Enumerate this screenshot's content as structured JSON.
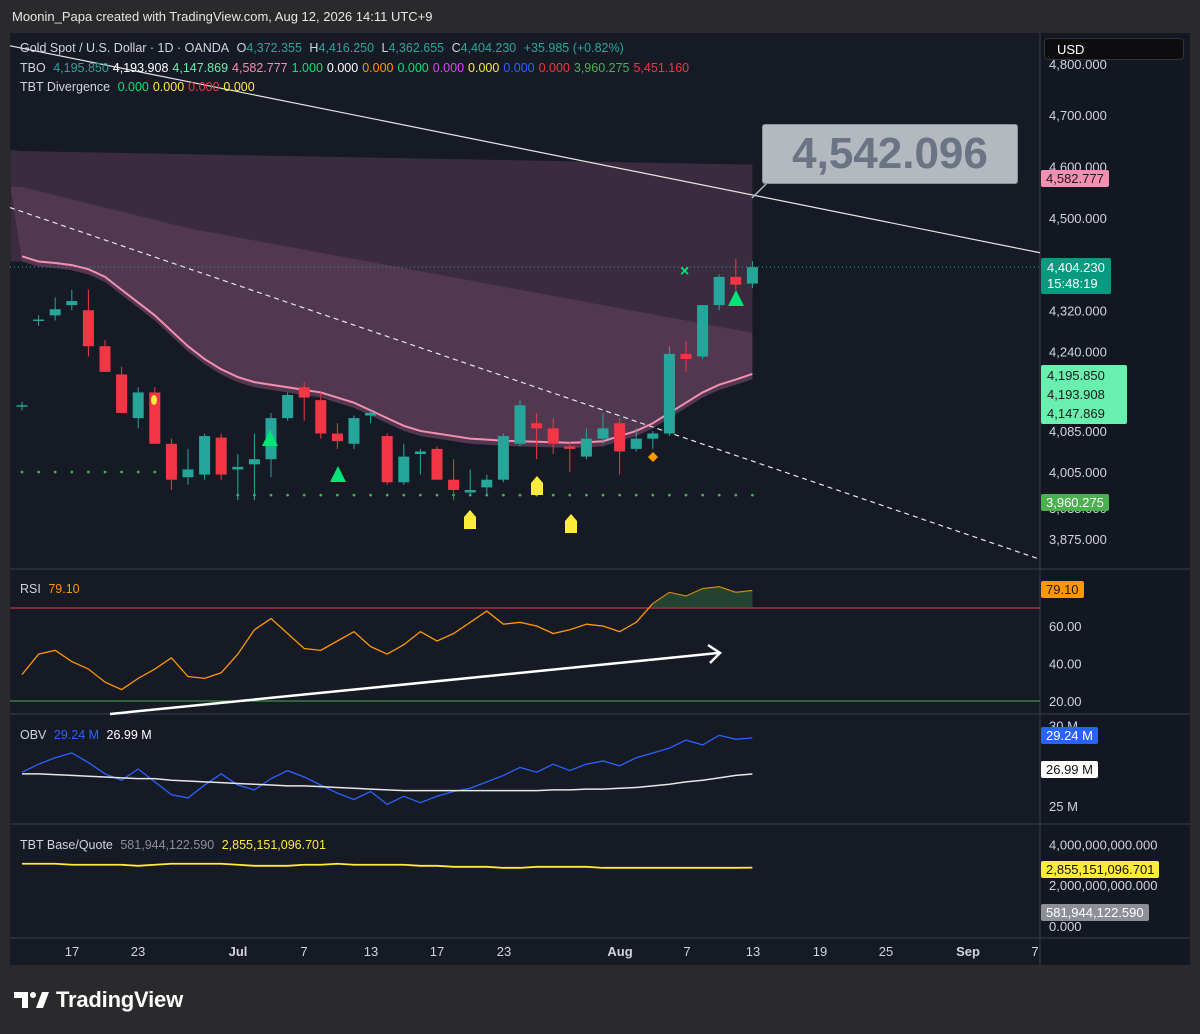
{
  "header": {
    "credit": "Moonin_Papa created with TradingView.com, Aug 12, 2026 14:11 UTC+9"
  },
  "footer": {
    "logo_text": "TradingView"
  },
  "currency_button": "USD",
  "colors": {
    "up": "#26a69a",
    "down": "#f23645",
    "rsi": "#ff9800",
    "obv": "#2962ff",
    "tbt_ma": "#ffeb3b",
    "sma": "#f48fb1",
    "volume": "#8c8f96"
  },
  "legend": {
    "main": {
      "symbol": "Gold Spot / U.S. Dollar · 1D · OANDA",
      "o_label": "O",
      "o": "4,372.355",
      "h_label": "H",
      "h": "4,416.250",
      "l_label": "L",
      "l": "4,362.655",
      "c_label": "C",
      "c": "4,404.230",
      "change": "+35.985 (+0.82%)"
    },
    "tbo": {
      "name": "TBO",
      "values": [
        "4,195.850",
        "4,193.908",
        "4,147.869",
        "4,582.777",
        "1.000",
        "0.000",
        "0.000",
        "0.000",
        "0.000",
        "0.000",
        "0.000",
        "0.000",
        "3,960.275",
        "5,451.160"
      ],
      "colors": [
        "#26a69a",
        "#ffffff",
        "#69f0ae",
        "#f48fb1",
        "#00e676",
        "#ffffff",
        "#ff9800",
        "#00e676",
        "#e040fb",
        "#ffeb3b",
        "#2962ff",
        "#f23645",
        "#4caf50",
        "#f23645"
      ]
    },
    "tbt_div": {
      "name": "TBT Divergence",
      "values": [
        "0.000",
        "0.000",
        "0.000",
        "0.000"
      ],
      "colors": [
        "#00e676",
        "#ffeb3b",
        "#f23645",
        "#ffeb3b"
      ]
    },
    "rsi": {
      "name": "RSI",
      "value": "79.10"
    },
    "obv": {
      "name": "OBV",
      "v1": "29.24 M",
      "v2": "26.99 M"
    },
    "tbt_bq": {
      "name": "TBT Base/Quote",
      "v1": "581,944,122.590",
      "v2": "2,855,151,096.701"
    }
  },
  "callout": "4,542.096",
  "price_axis": {
    "main_ticks": [
      "4,800.000",
      "4,700.000",
      "4,600.000",
      "4,500.000",
      "4,320.000",
      "4,240.000",
      "4,085.000",
      "4,005.000",
      "3,935.000",
      "3,875.000"
    ],
    "rsi_ticks": [
      "60.00",
      "40.00",
      "20.00"
    ],
    "obv_ticks": [
      "30 M",
      "27.5 M",
      "25 M"
    ],
    "bq_ticks": [
      "4,000,000,000.000",
      "2,000,000,000.000",
      "0.000"
    ]
  },
  "price_tags": {
    "tbo_upper": "4,582.777",
    "last_price": "4,404.230",
    "countdown": "15:48:19",
    "tbo_1": "4,195.850",
    "tbo_2": "4,193.908",
    "tbo_3": "4,147.869",
    "tbo_low": "3,960.275",
    "rsi": "79.10",
    "obv_1": "29.24 M",
    "obv_2": "26.99 M",
    "bq_1": "2,855,151,096.701",
    "bq_2": "581,944,122.590"
  },
  "time_axis": [
    "17",
    "23",
    "Jul",
    "7",
    "13",
    "17",
    "23",
    "Aug",
    "7",
    "13",
    "19",
    "25",
    "Sep",
    "7"
  ],
  "chart_data": {
    "type": "candlestick",
    "title": "Gold Spot / U.S. Dollar · 1D · OANDA",
    "ohlc": [
      [
        4135,
        4142,
        4125,
        4135
      ],
      [
        4300,
        4310,
        4290,
        4302
      ],
      [
        4310,
        4345,
        4300,
        4322
      ],
      [
        4330,
        4360,
        4320,
        4338
      ],
      [
        4320,
        4360,
        4230,
        4250
      ],
      [
        4250,
        4262,
        4200,
        4200
      ],
      [
        4195,
        4210,
        4120,
        4120
      ],
      [
        4110,
        4170,
        4090,
        4160
      ],
      [
        4160,
        4170,
        4060,
        4060
      ],
      [
        4060,
        4070,
        3970,
        3990
      ],
      [
        3995,
        4050,
        3980,
        4010
      ],
      [
        4000,
        4080,
        3990,
        4075
      ],
      [
        4072,
        4080,
        3990,
        4000
      ],
      [
        4010,
        4040,
        3950,
        4015
      ],
      [
        4020,
        4080,
        3950,
        4030
      ],
      [
        4030,
        4120,
        3995,
        4110
      ],
      [
        4110,
        4160,
        4105,
        4155
      ],
      [
        4170,
        4180,
        4105,
        4150
      ],
      [
        4145,
        4160,
        4070,
        4080
      ],
      [
        4080,
        4100,
        4050,
        4065
      ],
      [
        4060,
        4115,
        4050,
        4110
      ],
      [
        4115,
        4125,
        4100,
        4120
      ],
      [
        4075,
        4080,
        3980,
        3985
      ],
      [
        3985,
        4060,
        3980,
        4035
      ],
      [
        4040,
        4050,
        4000,
        4045
      ],
      [
        4050,
        4055,
        3990,
        3990
      ],
      [
        3990,
        4030,
        3950,
        3970
      ],
      [
        3965,
        4010,
        3960,
        3970
      ],
      [
        3975,
        4000,
        3960,
        3990
      ],
      [
        3990,
        4080,
        3985,
        4075
      ],
      [
        4060,
        4145,
        4055,
        4135
      ],
      [
        4100,
        4120,
        4030,
        4090
      ],
      [
        4090,
        4110,
        4040,
        4060
      ],
      [
        4055,
        4065,
        4005,
        4050
      ],
      [
        4035,
        4090,
        4030,
        4070
      ],
      [
        4070,
        4120,
        4060,
        4090
      ],
      [
        4100,
        4110,
        4000,
        4045
      ],
      [
        4050,
        4090,
        4045,
        4070
      ],
      [
        4070,
        4085,
        4050,
        4080
      ],
      [
        4080,
        4250,
        4075,
        4235
      ],
      [
        4235,
        4260,
        4200,
        4225
      ],
      [
        4230,
        4330,
        4225,
        4330
      ],
      [
        4330,
        4390,
        4320,
        4385
      ],
      [
        4385,
        4420,
        4360,
        4370
      ],
      [
        4372,
        4416,
        4363,
        4404
      ]
    ],
    "rsi": [
      34,
      45,
      47,
      41,
      37,
      30,
      26,
      32,
      37,
      43,
      33,
      32,
      35,
      45,
      58,
      64,
      56,
      48,
      47,
      52,
      57,
      49,
      45,
      50,
      57,
      52,
      56,
      62,
      68,
      61,
      62,
      60,
      56,
      58,
      61,
      60,
      57,
      62,
      72,
      78,
      76,
      80,
      81,
      78,
      79
    ],
    "obv_m": [
      27.1,
      27.6,
      28.0,
      28.3,
      27.7,
      27.0,
      26.6,
      27.3,
      26.5,
      25.7,
      25.5,
      26.3,
      27.0,
      26.3,
      26.0,
      26.7,
      27.2,
      26.8,
      26.3,
      25.8,
      25.4,
      25.9,
      25.1,
      25.6,
      25.2,
      25.6,
      25.9,
      26.1,
      26.5,
      26.9,
      27.4,
      27.1,
      27.6,
      27.2,
      27.6,
      27.8,
      27.5,
      28.0,
      28.3,
      28.6,
      29.1,
      28.8,
      29.4,
      29.15,
      29.24
    ],
    "obv_ma_m": [
      27.0,
      27.0,
      26.95,
      26.9,
      26.85,
      26.8,
      26.75,
      26.7,
      26.7,
      26.6,
      26.55,
      26.5,
      26.45,
      26.4,
      26.35,
      26.3,
      26.25,
      26.25,
      26.2,
      26.15,
      26.1,
      26.05,
      26.0,
      25.95,
      25.95,
      25.95,
      25.95,
      25.95,
      25.95,
      25.95,
      25.95,
      25.95,
      26.0,
      26.0,
      26.05,
      26.05,
      26.1,
      26.15,
      26.25,
      26.35,
      26.5,
      26.6,
      26.75,
      26.9,
      26.99
    ],
    "bq_b": [
      4.0,
      2.8,
      4.1,
      4.1,
      2.6,
      4.1,
      2.4,
      3.6,
      4.0,
      4.3,
      3.4,
      3.2,
      3.2,
      3.2,
      1.5,
      2.5,
      3.1,
      2.3,
      4.2,
      2.8,
      2.3,
      3.7,
      2.4,
      3.9,
      3.0,
      3.6,
      3.9,
      4.4,
      2.8,
      2.6,
      2.7,
      2.6,
      2.3,
      3.1,
      3.4,
      3.9,
      4.6,
      3.1,
      2.6,
      2.4,
      3.7,
      3.6,
      4.4,
      3.2,
      0.58
    ],
    "bq_ma_b": [
      3.05,
      3.05,
      3.05,
      3.0,
      3.0,
      3.0,
      3.0,
      2.95,
      3.0,
      3.05,
      3.05,
      3.05,
      3.05,
      3.0,
      2.95,
      2.95,
      2.95,
      3.0,
      3.0,
      3.05,
      3.0,
      3.0,
      3.0,
      3.0,
      2.95,
      2.95,
      2.9,
      2.9,
      2.9,
      2.85,
      2.85,
      2.9,
      2.9,
      2.9,
      2.9,
      2.85,
      2.85,
      2.85,
      2.85,
      2.85,
      2.85,
      2.85,
      2.85,
      2.85,
      2.86
    ],
    "sma": [
      4425,
      4415,
      4412,
      4408,
      4400,
      4385,
      4360,
      4335,
      4310,
      4280,
      4250,
      4225,
      4205,
      4190,
      4180,
      4175,
      4170,
      4165,
      4160,
      4150,
      4140,
      4125,
      4110,
      4095,
      4085,
      4080,
      4075,
      4070,
      4068,
      4066,
      4065,
      4064,
      4063,
      4062,
      4063,
      4065,
      4075,
      4085,
      4100,
      4120,
      4140,
      4160,
      4175,
      4185,
      4196
    ],
    "ylim": [
      3820,
      4860
    ],
    "rsi_ylim": [
      14,
      90
    ],
    "obv_ylim": [
      24.0,
      30.6
    ],
    "bq_ylim": [
      0,
      4.9
    ]
  }
}
